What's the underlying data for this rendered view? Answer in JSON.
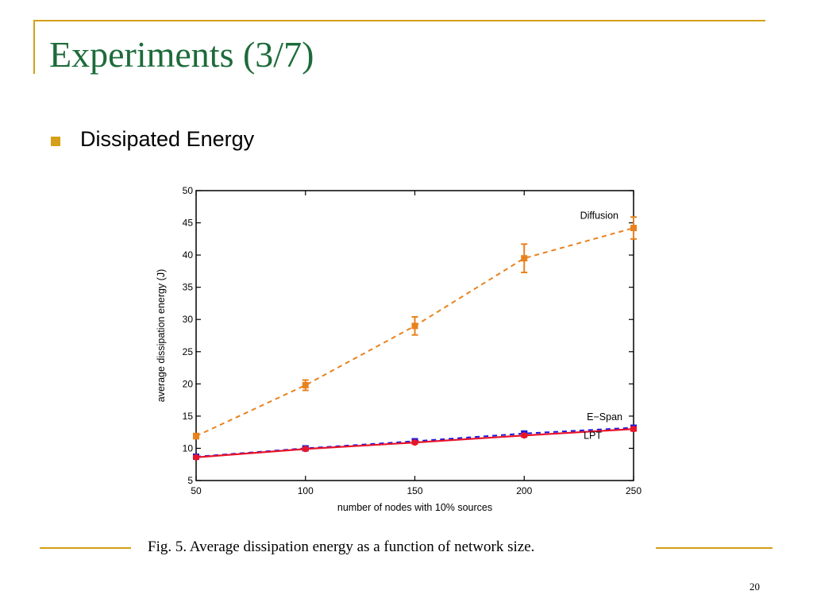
{
  "slide": {
    "title": "Experiments (3/7)",
    "bullet": "Dissipated Energy",
    "caption": "Fig. 5.    Average dissipation energy as a function of network size.",
    "page_number": "20",
    "colors": {
      "accent": "#d4a017",
      "title": "#1d6b3a"
    }
  },
  "chart_data": {
    "type": "line",
    "title": "",
    "xlabel": "number of nodes with 10% sources",
    "ylabel": "average dissipation energy (J)",
    "xlim": [
      50,
      250
    ],
    "ylim": [
      5,
      50
    ],
    "xticks": [
      50,
      100,
      150,
      200,
      250
    ],
    "yticks": [
      5,
      10,
      15,
      20,
      25,
      30,
      35,
      40,
      45,
      50
    ],
    "grid": false,
    "x": [
      50,
      100,
      150,
      200,
      250
    ],
    "series": [
      {
        "name": "Diffusion",
        "color": "#e8821e",
        "dashed": true,
        "marker": "square",
        "values": [
          11.9,
          19.8,
          29.0,
          39.5,
          44.2
        ],
        "error": [
          0.4,
          0.8,
          1.4,
          2.2,
          1.7
        ]
      },
      {
        "name": "E−Span",
        "color": "#1a1adc",
        "dashed": true,
        "marker": "square",
        "values": [
          8.7,
          10.0,
          11.1,
          12.3,
          13.2
        ],
        "error": [
          0.2,
          0.2,
          0.25,
          0.3,
          0.35
        ]
      },
      {
        "name": "LPT",
        "color": "#e8142a",
        "dashed": false,
        "marker": "circle",
        "values": [
          8.6,
          9.9,
          10.9,
          12.0,
          13.0
        ],
        "error": [
          0.2,
          0.2,
          0.2,
          0.25,
          0.3
        ]
      }
    ]
  }
}
